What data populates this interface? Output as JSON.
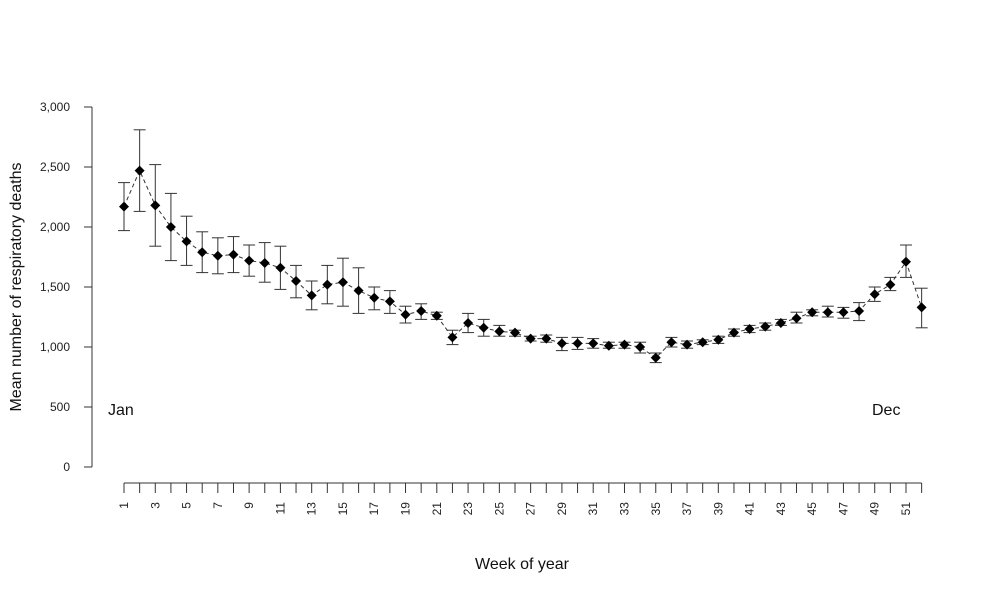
{
  "chart_data": {
    "type": "line",
    "title": "",
    "xlabel": "Week of year",
    "ylabel": "Mean number of respiratory deaths",
    "ylim": [
      0,
      3000
    ],
    "yticks": [
      0,
      500,
      1000,
      1500,
      2000,
      2500,
      3000
    ],
    "ytick_labels": [
      "0",
      "500",
      "1,000",
      "1,500",
      "2,000",
      "2,500",
      "3,000"
    ],
    "xticks": [
      1,
      2,
      3,
      4,
      5,
      6,
      7,
      8,
      9,
      10,
      11,
      12,
      13,
      14,
      15,
      16,
      17,
      18,
      19,
      20,
      21,
      22,
      23,
      24,
      25,
      26,
      27,
      28,
      29,
      30,
      31,
      32,
      33,
      34,
      35,
      36,
      37,
      38,
      39,
      40,
      41,
      42,
      43,
      44,
      45,
      46,
      47,
      48,
      49,
      50,
      51,
      52
    ],
    "xtick_labels": [
      "1",
      "3",
      "5",
      "7",
      "9",
      "11",
      "13",
      "15",
      "17",
      "19",
      "21",
      "23",
      "25",
      "27",
      "29",
      "31",
      "33",
      "35",
      "37",
      "39",
      "41",
      "43",
      "45",
      "47",
      "49",
      "51"
    ],
    "annotations": [
      "Jan",
      "Dec"
    ],
    "grid": false,
    "error_bars": true,
    "x": [
      1,
      2,
      3,
      4,
      5,
      6,
      7,
      8,
      9,
      10,
      11,
      12,
      13,
      14,
      15,
      16,
      17,
      18,
      19,
      20,
      21,
      22,
      23,
      24,
      25,
      26,
      27,
      28,
      29,
      30,
      31,
      32,
      33,
      34,
      35,
      36,
      37,
      38,
      39,
      40,
      41,
      42,
      43,
      44,
      45,
      46,
      47,
      48,
      49,
      50,
      51,
      52
    ],
    "mean": [
      2170,
      2470,
      2180,
      2000,
      1880,
      1790,
      1760,
      1770,
      1720,
      1700,
      1660,
      1550,
      1430,
      1520,
      1540,
      1470,
      1410,
      1380,
      1270,
      1300,
      1260,
      1080,
      1200,
      1160,
      1130,
      1120,
      1070,
      1070,
      1030,
      1030,
      1030,
      1010,
      1020,
      1000,
      910,
      1040,
      1020,
      1040,
      1060,
      1120,
      1150,
      1170,
      1200,
      1240,
      1290,
      1290,
      1290,
      1300,
      1440,
      1520,
      1710,
      1330
    ],
    "lower": [
      1970,
      2130,
      1840,
      1720,
      1680,
      1620,
      1610,
      1620,
      1590,
      1540,
      1480,
      1410,
      1310,
      1360,
      1340,
      1280,
      1310,
      1280,
      1200,
      1230,
      1230,
      1020,
      1120,
      1090,
      1090,
      1090,
      1050,
      1040,
      970,
      980,
      990,
      990,
      990,
      950,
      870,
      1000,
      990,
      1020,
      1030,
      1090,
      1120,
      1140,
      1180,
      1200,
      1260,
      1250,
      1240,
      1220,
      1380,
      1470,
      1580,
      1160
    ],
    "upper": [
      2370,
      2810,
      2520,
      2280,
      2090,
      1960,
      1910,
      1920,
      1850,
      1870,
      1840,
      1680,
      1550,
      1680,
      1740,
      1660,
      1500,
      1470,
      1340,
      1360,
      1290,
      1140,
      1280,
      1230,
      1180,
      1140,
      1090,
      1100,
      1080,
      1080,
      1070,
      1040,
      1040,
      1040,
      950,
      1080,
      1050,
      1060,
      1090,
      1150,
      1180,
      1200,
      1230,
      1290,
      1310,
      1340,
      1330,
      1370,
      1500,
      1580,
      1850,
      1490
    ]
  }
}
